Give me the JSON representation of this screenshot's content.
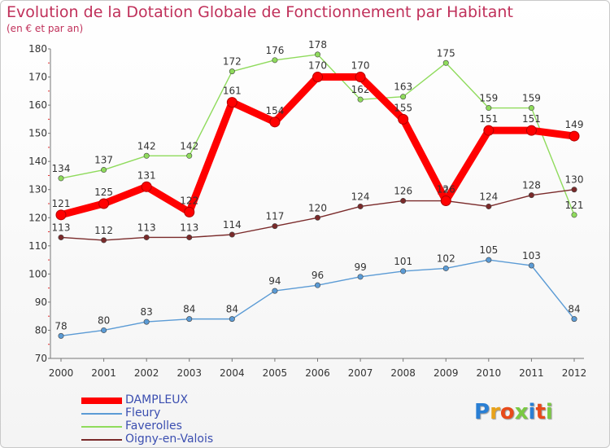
{
  "title": "Evolution de la Dotation Globale de Fonctionnement par Habitant",
  "subtitle": "(en € et par an)",
  "logo_text": "Proxiti",
  "chart_data": {
    "type": "line",
    "title": "Evolution de la Dotation Globale de Fonctionnement par Habitant",
    "subtitle": "(en € et par an)",
    "x": [
      "2000",
      "2001",
      "2002",
      "2003",
      "2004",
      "2005",
      "2006",
      "2007",
      "2008",
      "2009",
      "2010",
      "2011",
      "2012"
    ],
    "ylim": [
      70,
      180
    ],
    "yticks": [
      70,
      80,
      90,
      100,
      110,
      120,
      130,
      140,
      150,
      160,
      170,
      180
    ],
    "grid": false,
    "legend_position": "bottom-left",
    "series": [
      {
        "name": "DAMPLEUX",
        "color": "#ff0000",
        "values": [
          121,
          125,
          131,
          122,
          161,
          154,
          170,
          170,
          155,
          126,
          151,
          151,
          149
        ]
      },
      {
        "name": "Fleury",
        "color": "#5b9bd5",
        "values": [
          78,
          80,
          83,
          84,
          84,
          94,
          96,
          99,
          101,
          102,
          105,
          103,
          84
        ]
      },
      {
        "name": "Faverolles",
        "color": "#8fdb5c",
        "values": [
          134,
          137,
          142,
          142,
          172,
          176,
          178,
          162,
          163,
          175,
          159,
          159,
          121
        ]
      },
      {
        "name": "Oigny-en-Valois",
        "color": "#7a2a2a",
        "values": [
          113,
          112,
          113,
          113,
          114,
          117,
          120,
          124,
          126,
          126,
          124,
          128,
          130
        ]
      }
    ]
  }
}
